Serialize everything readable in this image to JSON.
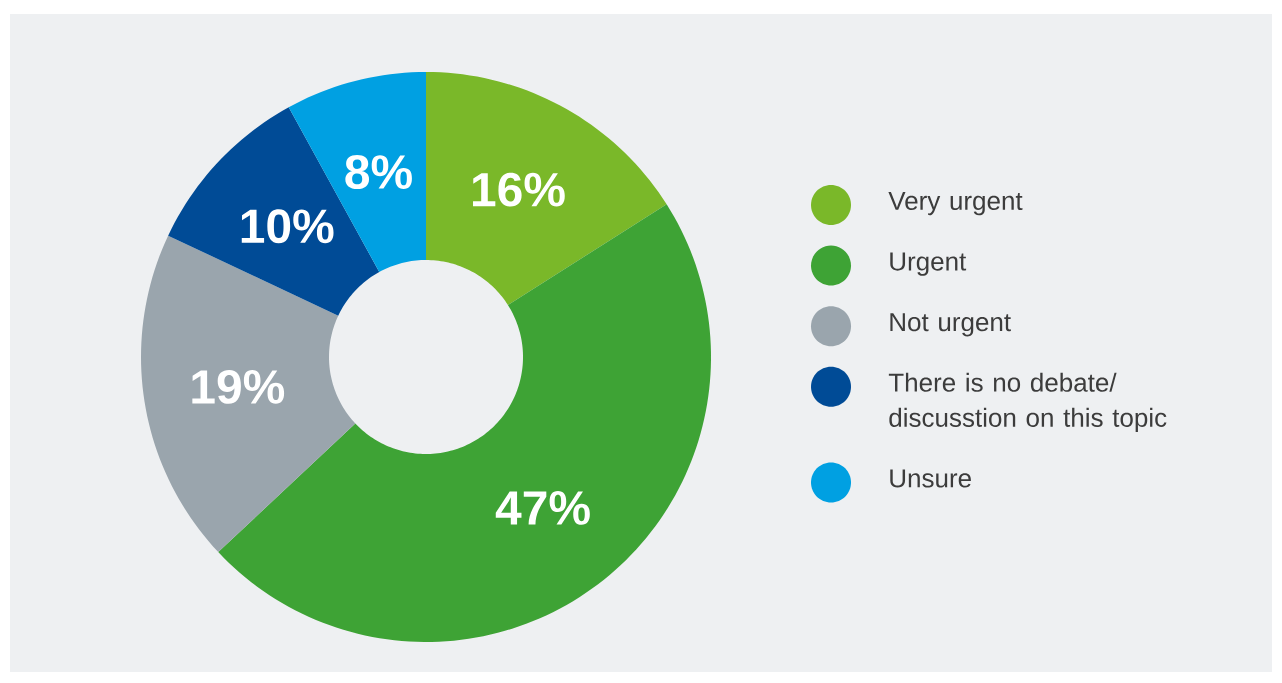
{
  "chart_data": {
    "type": "donut",
    "categories": [
      "Very urgent",
      "Urgent",
      "Not urgent",
      "There is no debate/ discusstion on this topic",
      "Unsure"
    ],
    "values": [
      16,
      47,
      19,
      10,
      8
    ],
    "value_labels": [
      "16%",
      "47%",
      "19%",
      "10%",
      "8%"
    ],
    "colors": [
      "#7ab829",
      "#3ea335",
      "#9aa5ad",
      "#004b96",
      "#00a0e2"
    ],
    "legend": "right"
  }
}
